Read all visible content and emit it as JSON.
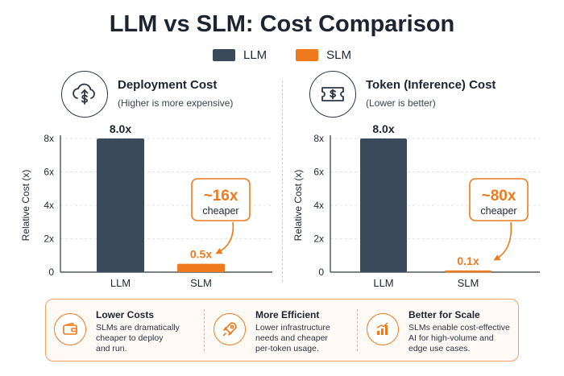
{
  "title": "LLM vs SLM: Cost Comparison",
  "legend": [
    {
      "label": "LLM",
      "color": "#3a4a5b"
    },
    {
      "label": "SLM",
      "color": "#ef7a1d"
    }
  ],
  "panels": [
    {
      "icon": "cloud-dollar-icon",
      "title": "Deployment Cost",
      "subtitle": "(Higher is more expensive)",
      "callout_big": "~16x",
      "callout_small": "cheaper"
    },
    {
      "icon": "ticket-dollar-icon",
      "title": "Token (Inference) Cost",
      "subtitle": "(Lower is better)",
      "callout_big": "~80x",
      "callout_small": "cheaper"
    }
  ],
  "chart_data": [
    {
      "type": "bar",
      "title": "Deployment Cost",
      "categories": [
        "LLM",
        "SLM"
      ],
      "values": [
        8.0,
        0.5
      ],
      "value_labels": [
        "8.0x",
        "0.5x"
      ],
      "colors": [
        "#3a4a5b",
        "#ef7a1d"
      ],
      "ylabel": "Relative Cost (x)",
      "ylim": [
        0,
        8
      ],
      "yticks": [
        0,
        2,
        4,
        6,
        8
      ],
      "ytick_labels": [
        "0",
        "2x",
        "4x",
        "6x",
        "8x"
      ],
      "grid": true
    },
    {
      "type": "bar",
      "title": "Token (Inference) Cost",
      "categories": [
        "LLM",
        "SLM"
      ],
      "values": [
        8.0,
        0.1
      ],
      "value_labels": [
        "8.0x",
        "0.1x"
      ],
      "colors": [
        "#3a4a5b",
        "#ef7a1d"
      ],
      "ylabel": "Relative Cost (x)",
      "ylim": [
        0,
        8
      ],
      "yticks": [
        0,
        2,
        4,
        6,
        8
      ],
      "ytick_labels": [
        "0",
        "2x",
        "4x",
        "6x",
        "8x"
      ],
      "grid": true
    }
  ],
  "benefits": [
    {
      "icon": "wallet-icon",
      "title": "Lower Costs",
      "lines": [
        "SLMs are dramatically",
        "cheaper to deploy",
        "and run."
      ]
    },
    {
      "icon": "rocket-icon",
      "title": "More Efficient",
      "lines": [
        "Lower infrastructure",
        "needs and cheaper",
        "per-token usage."
      ]
    },
    {
      "icon": "bar-growth-icon",
      "title": "Better for Scale",
      "lines": [
        "SLMs enable cost-effective",
        "AI for high-volume and",
        "edge use cases."
      ]
    }
  ]
}
